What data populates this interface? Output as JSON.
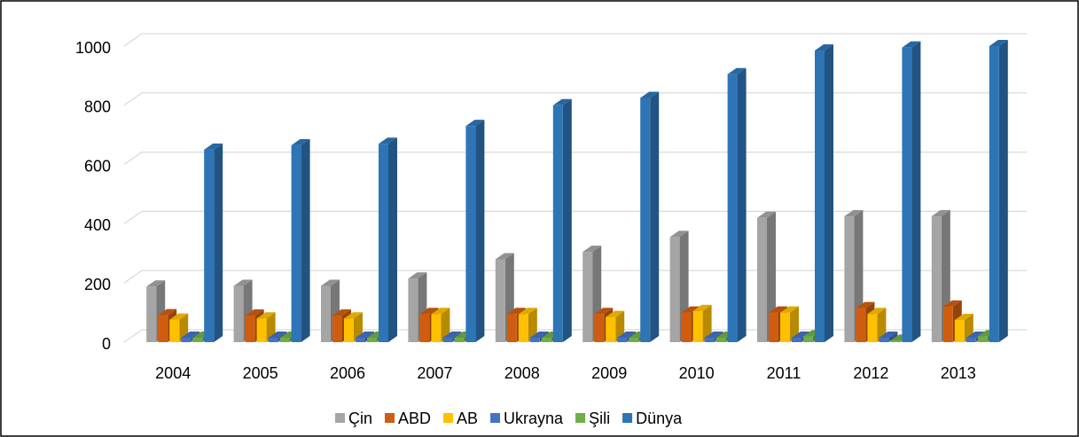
{
  "chart_data": {
    "type": "bar3d",
    "categories": [
      "2004",
      "2005",
      "2006",
      "2007",
      "2008",
      "2009",
      "2010",
      "2011",
      "2012",
      "2013"
    ],
    "series": [
      {
        "name": "Çin",
        "color": "#a5a5a5",
        "values": [
          188,
          190,
          190,
          215,
          280,
          305,
          355,
          420,
          425,
          425
        ]
      },
      {
        "name": "ABD",
        "color": "#d05d0f",
        "values": [
          91,
          90,
          90,
          95,
          95,
          95,
          100,
          100,
          115,
          120
        ]
      },
      {
        "name": "AB",
        "color": "#ffc000",
        "values": [
          76,
          80,
          80,
          95,
          95,
          85,
          105,
          100,
          95,
          75
        ]
      },
      {
        "name": "Ukrayna",
        "color": "#4472c4",
        "values": [
          15,
          15,
          15,
          15,
          15,
          15,
          15,
          15,
          15,
          15
        ]
      },
      {
        "name": "Şili",
        "color": "#70ad47",
        "values": [
          15,
          15,
          15,
          15,
          15,
          15,
          15,
          20,
          5,
          20
        ]
      },
      {
        "name": "Dünya",
        "color": "#2e75b6",
        "values": [
          650,
          665,
          670,
          730,
          800,
          825,
          905,
          985,
          995,
          1000
        ]
      }
    ],
    "ylim": [
      0,
      1000
    ],
    "yticks": [
      0,
      200,
      400,
      600,
      800,
      1000
    ],
    "grid": true,
    "legend": "bottom"
  }
}
